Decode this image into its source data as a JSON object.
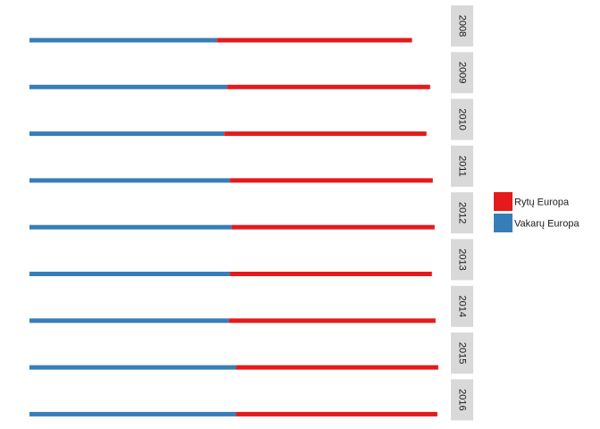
{
  "chart_data": {
    "type": "bar",
    "orientation": "horizontal",
    "stacked": true,
    "facets": [
      "2008",
      "2009",
      "2010",
      "2011",
      "2012",
      "2013",
      "2014",
      "2015",
      "2016"
    ],
    "series": [
      {
        "name": "Vakarų Europa",
        "color": "#377EB8",
        "values": [
          207,
          218,
          215,
          221,
          223,
          221,
          220,
          228,
          228
        ]
      },
      {
        "name": "Rytų Europa",
        "color": "#E41A1C",
        "values": [
          215,
          224,
          223,
          224,
          224,
          223,
          228,
          223,
          222
        ]
      }
    ],
    "xlim": [
      0,
      460
    ],
    "grid": false,
    "axes_visible": false,
    "legend": {
      "placement": "right",
      "order": [
        "Rytų Europa",
        "Vakarų Europa"
      ]
    }
  }
}
